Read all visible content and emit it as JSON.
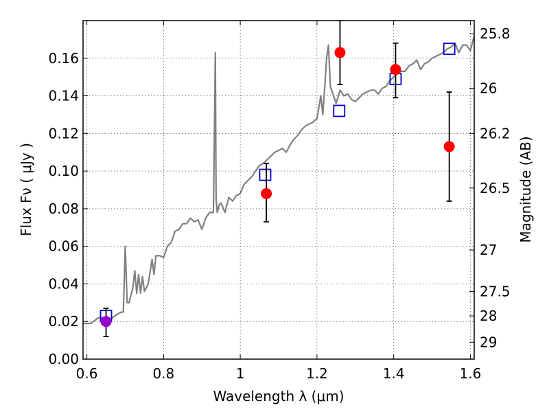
{
  "chart_data": {
    "type": "scatter",
    "xlabel": "Wavelength  λ (μm)",
    "ylabel": "Flux  Fν  ( μJy )",
    "ylabel_right": "Magnitude (AB)",
    "xlim": [
      0.59,
      1.61
    ],
    "ylim": [
      0.0,
      0.18
    ],
    "grid": true,
    "x_ticks": [
      0.6,
      0.8,
      1.0,
      1.2,
      1.4,
      1.6
    ],
    "x_tick_labels": [
      "0.6",
      "0.8",
      "1",
      "1.2",
      "1.4",
      "1.6"
    ],
    "y_ticks": [
      0.0,
      0.02,
      0.04,
      0.06,
      0.08,
      0.1,
      0.12,
      0.14,
      0.16
    ],
    "y_tick_labels": [
      "0.00",
      "0.02",
      "0.04",
      "0.06",
      "0.08",
      "0.10",
      "0.12",
      "0.14",
      "0.16"
    ],
    "right_ticks": [
      {
        "label": "25.8",
        "flux": 0.173
      },
      {
        "label": "26",
        "flux": 0.144
      },
      {
        "label": "26.2",
        "flux": 0.12
      },
      {
        "label": "26.5",
        "flux": 0.091
      },
      {
        "label": "27",
        "flux": 0.058
      },
      {
        "label": "27.5",
        "flux": 0.036
      },
      {
        "label": "28",
        "flux": 0.023
      },
      {
        "label": "29",
        "flux": 0.009
      }
    ],
    "series": [
      {
        "type": "line",
        "color": "#808080",
        "x": [
          0.59,
          0.61,
          0.63,
          0.645,
          0.66,
          0.68,
          0.69,
          0.695,
          0.7,
          0.705,
          0.71,
          0.72,
          0.725,
          0.73,
          0.735,
          0.74,
          0.745,
          0.75,
          0.76,
          0.77,
          0.775,
          0.78,
          0.79,
          0.8,
          0.81,
          0.82,
          0.83,
          0.84,
          0.85,
          0.86,
          0.87,
          0.88,
          0.89,
          0.9,
          0.91,
          0.92,
          0.93,
          0.935,
          0.937,
          0.94,
          0.945,
          0.95,
          0.96,
          0.97,
          0.98,
          0.99,
          1.0,
          1.01,
          1.02,
          1.03,
          1.04,
          1.05,
          1.06,
          1.07,
          1.08,
          1.09,
          1.1,
          1.11,
          1.12,
          1.13,
          1.14,
          1.15,
          1.16,
          1.17,
          1.18,
          1.19,
          1.2,
          1.21,
          1.215,
          1.22,
          1.225,
          1.23,
          1.235,
          1.24,
          1.25,
          1.26,
          1.27,
          1.28,
          1.29,
          1.3,
          1.31,
          1.32,
          1.33,
          1.34,
          1.35,
          1.36,
          1.37,
          1.38,
          1.39,
          1.4,
          1.41,
          1.42,
          1.43,
          1.44,
          1.45,
          1.46,
          1.47,
          1.48,
          1.49,
          1.5,
          1.51,
          1.52,
          1.53,
          1.54,
          1.55,
          1.56,
          1.57,
          1.58,
          1.59,
          1.6,
          1.61
        ],
        "y": [
          0.019,
          0.019,
          0.022,
          0.022,
          0.021,
          0.024,
          0.025,
          0.025,
          0.06,
          0.03,
          0.03,
          0.038,
          0.047,
          0.035,
          0.045,
          0.035,
          0.044,
          0.036,
          0.04,
          0.053,
          0.045,
          0.055,
          0.055,
          0.054,
          0.06,
          0.062,
          0.068,
          0.069,
          0.072,
          0.072,
          0.075,
          0.073,
          0.074,
          0.069,
          0.075,
          0.078,
          0.078,
          0.163,
          0.085,
          0.078,
          0.082,
          0.083,
          0.078,
          0.086,
          0.084,
          0.087,
          0.088,
          0.093,
          0.095,
          0.097,
          0.1,
          0.103,
          0.104,
          0.106,
          0.108,
          0.11,
          0.111,
          0.112,
          0.11,
          0.114,
          0.117,
          0.119,
          0.122,
          0.124,
          0.125,
          0.126,
          0.128,
          0.14,
          0.13,
          0.144,
          0.16,
          0.167,
          0.145,
          0.142,
          0.136,
          0.143,
          0.14,
          0.141,
          0.138,
          0.137,
          0.139,
          0.141,
          0.142,
          0.143,
          0.143,
          0.141,
          0.144,
          0.145,
          0.148,
          0.15,
          0.152,
          0.153,
          0.153,
          0.156,
          0.157,
          0.159,
          0.154,
          0.157,
          0.158,
          0.16,
          0.161,
          0.162,
          0.163,
          0.165,
          0.166,
          0.168,
          0.163,
          0.167,
          0.167,
          0.164,
          0.172
        ]
      },
      {
        "type": "open-square",
        "color": "#0000cc",
        "x": [
          0.65,
          1.065,
          1.258,
          1.405,
          1.545
        ],
        "y": [
          0.023,
          0.098,
          0.132,
          0.149,
          0.165
        ]
      },
      {
        "type": "errorbar-point",
        "color": "#ff0000",
        "x": [
          1.068,
          1.26,
          1.405,
          1.545
        ],
        "y": [
          0.088,
          0.163,
          0.154,
          0.113
        ],
        "yerr_low": [
          0.073,
          0.146,
          0.139,
          0.084
        ],
        "yerr_high": [
          0.104,
          0.18,
          0.168,
          0.142
        ]
      },
      {
        "type": "errorbar-point",
        "color": "#9900cc",
        "x": [
          0.65
        ],
        "y": [
          0.02
        ],
        "yerr_low": [
          0.012
        ],
        "yerr_high": [
          0.027
        ]
      }
    ]
  }
}
